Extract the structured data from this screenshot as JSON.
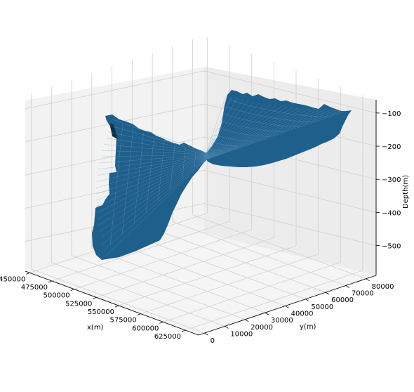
{
  "chart_data": {
    "type": "surface3d",
    "xlabel": "x(m)",
    "ylabel": "y(m)",
    "zlabel": "Depth(m)",
    "xticks": [
      "450000",
      "475000",
      "500000",
      "525000",
      "550000",
      "575000",
      "600000",
      "625000"
    ],
    "yticks": [
      "0",
      "10000",
      "20000",
      "30000",
      "40000",
      "50000",
      "60000",
      "70000",
      "80000"
    ],
    "zticks": [
      "−100",
      "−200",
      "−300",
      "−400",
      "−500"
    ],
    "xlim": [
      445000,
      640000
    ],
    "ylim": [
      -3000,
      85000
    ],
    "zlim": [
      -590,
      -60
    ],
    "surface_color": "#1f5f8b",
    "mesh_color": "#6fa3c8",
    "grid": true,
    "surface_points": [
      {
        "x": 460000,
        "y": 3000,
        "z": -130
      },
      {
        "x": 480000,
        "y": 18000,
        "z": -140
      },
      {
        "x": 470000,
        "y": 10000,
        "z": -540
      },
      {
        "x": 540000,
        "y": 40000,
        "z": -230
      },
      {
        "x": 560000,
        "y": 50000,
        "z": -250
      },
      {
        "x": 600000,
        "y": 78000,
        "z": -95
      },
      {
        "x": 630000,
        "y": 60000,
        "z": -100
      }
    ]
  }
}
